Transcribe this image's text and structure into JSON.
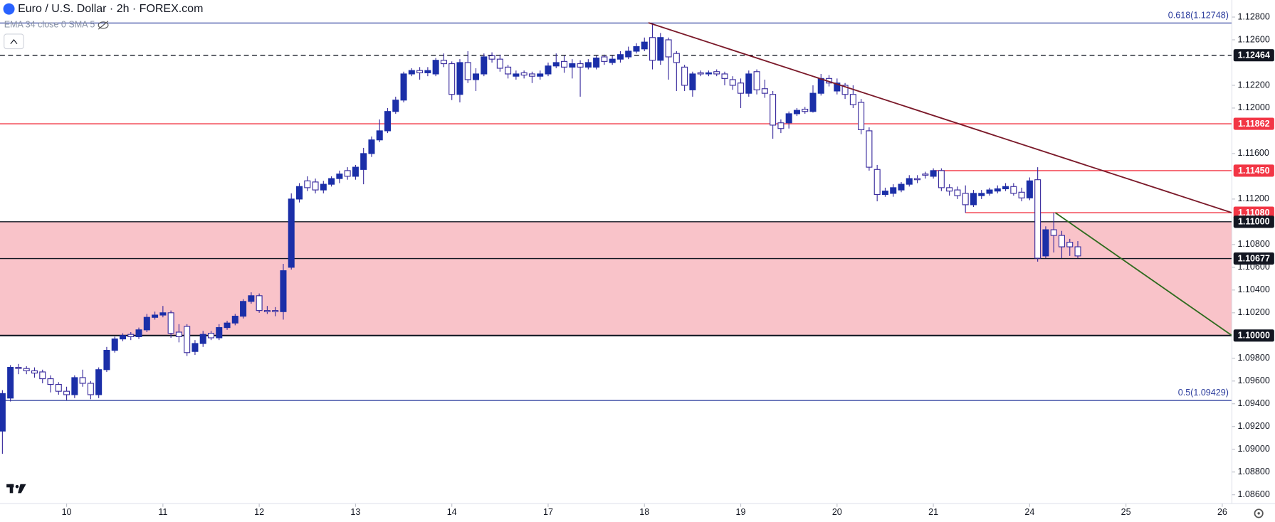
{
  "chart_data": {
    "type": "candlestick",
    "title": "Euro / U.S. Dollar · 2h · FOREX.com",
    "indicator": "EMA 34 close 0 SMA 5",
    "up_color": "#1b2fa8",
    "down_color": "#ffffff",
    "border_color": "#3b2d9e",
    "xlim": [
      -0.3,
      153.2
    ],
    "ylim": [
      1.08522,
      1.1295
    ],
    "xticks": [
      {
        "value": 8,
        "label": "10"
      },
      {
        "value": 20,
        "label": "11"
      },
      {
        "value": 32,
        "label": "12"
      },
      {
        "value": 44,
        "label": "13"
      },
      {
        "value": 56,
        "label": "14"
      },
      {
        "value": 68,
        "label": "17"
      },
      {
        "value": 80,
        "label": "18"
      },
      {
        "value": 92,
        "label": "19"
      },
      {
        "value": 104,
        "label": "20"
      },
      {
        "value": 116,
        "label": "21"
      },
      {
        "value": 128,
        "label": "24"
      },
      {
        "value": 140,
        "label": "25"
      },
      {
        "value": 152,
        "label": "26"
      }
    ],
    "yticks": [
      {
        "value": 1.128,
        "label": "1.12800"
      },
      {
        "value": 1.126,
        "label": "1.12600"
      },
      {
        "value": 1.122,
        "label": "1.12200"
      },
      {
        "value": 1.12,
        "label": "1.12000"
      },
      {
        "value": 1.116,
        "label": "1.11600"
      },
      {
        "value": 1.112,
        "label": "1.11200"
      },
      {
        "value": 1.108,
        "label": "1.10800"
      },
      {
        "value": 1.106,
        "label": "1.10600"
      },
      {
        "value": 1.104,
        "label": "1.10400"
      },
      {
        "value": 1.102,
        "label": "1.10200"
      },
      {
        "value": 1.098,
        "label": "1.09800"
      },
      {
        "value": 1.096,
        "label": "1.09600"
      },
      {
        "value": 1.094,
        "label": "1.09400"
      },
      {
        "value": 1.092,
        "label": "1.09200"
      },
      {
        "value": 1.09,
        "label": "1.09000"
      },
      {
        "value": 1.088,
        "label": "1.08800"
      },
      {
        "value": 1.086,
        "label": "1.08600"
      }
    ],
    "zone": {
      "ylim": [
        1.1,
        1.11
      ],
      "color": "#f9c3c9"
    },
    "fib_levels": [
      {
        "value": 1.12748,
        "label": "0.618(1.12748)",
        "color": "#2a3b9c"
      },
      {
        "value": 1.09429,
        "label": "0.5(1.09429)",
        "color": "#2a3b9c"
      }
    ],
    "levels": [
      {
        "value": 1.12464,
        "label": "1.12464",
        "color": "#131722",
        "dashed": true,
        "x_start": -0.3
      },
      {
        "value": 1.11862,
        "label": "1.11862",
        "color": "#f23645",
        "x_start": -0.3
      },
      {
        "value": 1.1145,
        "label": "1.11450",
        "color": "#f23645",
        "x_start": 116
      },
      {
        "value": 1.1108,
        "label": "1.11080",
        "color": "#f23645",
        "x_start": 120
      },
      {
        "value": 1.11,
        "label": "1.11000",
        "color": "#131722",
        "x_start": -0.3
      },
      {
        "value": 1.10677,
        "label": "1.10677",
        "color": "#131722",
        "x_start": -0.3
      },
      {
        "value": 1.1,
        "label": "1.10000",
        "color": "#131722",
        "x_start": -0.3
      }
    ],
    "trendlines": [
      {
        "x": [
          80.5,
          153.2
        ],
        "y": [
          1.1275,
          1.1108
        ],
        "color": "#7b1a2a"
      },
      {
        "x": [
          131.2,
          153.2
        ],
        "y": [
          1.1108,
          1.1
        ],
        " color": "#2e6b1e",
        "color": "#2e6b1e"
      }
    ],
    "candles": [
      [
        1.0916,
        1.0952,
        1.0896,
        1.0949
      ],
      [
        1.0945,
        1.0974,
        1.0942,
        1.0972
      ],
      [
        1.0972,
        1.0975,
        1.0966,
        1.0971
      ],
      [
        1.0971,
        1.0973,
        1.0966,
        1.0969
      ],
      [
        1.0969,
        1.0972,
        1.0963,
        1.0967
      ],
      [
        1.0968,
        1.097,
        1.0958,
        1.0962
      ],
      [
        1.0962,
        1.0965,
        1.095,
        1.0957
      ],
      [
        1.0957,
        1.0959,
        1.0948,
        1.0951
      ],
      [
        1.0951,
        1.0955,
        1.0943,
        1.0948
      ],
      [
        1.0948,
        1.0965,
        1.0945,
        1.0963
      ],
      [
        1.0963,
        1.097,
        1.0955,
        1.0958
      ],
      [
        1.0958,
        1.096,
        1.0944,
        1.0948
      ],
      [
        1.0948,
        1.0972,
        1.0945,
        1.097
      ],
      [
        1.097,
        1.099,
        1.0968,
        1.0987
      ],
      [
        1.0987,
        1.0999,
        1.0985,
        1.0997
      ],
      [
        1.0997,
        1.1002,
        1.0995,
        1.1
      ],
      [
        1.1001,
        1.1003,
        1.0996,
        1.0999
      ],
      [
        1.0999,
        1.1007,
        1.0997,
        1.1005
      ],
      [
        1.1005,
        1.1019,
        1.1003,
        1.1016
      ],
      [
        1.1016,
        1.1021,
        1.1014,
        1.1018
      ],
      [
        1.1018,
        1.1026,
        1.1016,
        1.102
      ],
      [
        1.102,
        1.1022,
        1.0998,
        1.1002
      ],
      [
        1.1003,
        1.101,
        1.0994,
        1.0999
      ],
      [
        1.1008,
        1.101,
        1.0982,
        1.0985
      ],
      [
        1.0986,
        1.0996,
        1.0983,
        1.0993
      ],
      [
        1.0993,
        1.1004,
        1.099,
        1.1001
      ],
      [
        1.1002,
        1.1004,
        1.0996,
        1.0998
      ],
      [
        1.0998,
        1.101,
        1.0996,
        1.1007
      ],
      [
        1.1007,
        1.1013,
        1.1005,
        1.1011
      ],
      [
        1.1011,
        1.1019,
        1.1009,
        1.1017
      ],
      [
        1.1017,
        1.1032,
        1.1015,
        1.103
      ],
      [
        1.103,
        1.1038,
        1.1028,
        1.1035
      ],
      [
        1.1035,
        1.1037,
        1.102,
        1.1022
      ],
      [
        1.1022,
        1.1026,
        1.1019,
        1.1021
      ],
      [
        1.1022,
        1.1025,
        1.1017,
        1.1021
      ],
      [
        1.1021,
        1.1063,
        1.1014,
        1.1057
      ],
      [
        1.106,
        1.1125,
        1.1058,
        1.112
      ],
      [
        1.112,
        1.1134,
        1.1117,
        1.1131
      ],
      [
        1.1136,
        1.114,
        1.1127,
        1.113
      ],
      [
        1.1135,
        1.1138,
        1.1125,
        1.1128
      ],
      [
        1.1128,
        1.1136,
        1.1125,
        1.1133
      ],
      [
        1.1133,
        1.114,
        1.1131,
        1.1138
      ],
      [
        1.1138,
        1.1145,
        1.1134,
        1.1142
      ],
      [
        1.1145,
        1.1148,
        1.1137,
        1.114
      ],
      [
        1.114,
        1.115,
        1.1137,
        1.1148
      ],
      [
        1.1146,
        1.1165,
        1.1133,
        1.116
      ],
      [
        1.116,
        1.1175,
        1.1157,
        1.1172
      ],
      [
        1.1172,
        1.119,
        1.117,
        1.118
      ],
      [
        1.118,
        1.12,
        1.1178,
        1.1197
      ],
      [
        1.1197,
        1.121,
        1.1195,
        1.1207
      ],
      [
        1.1207,
        1.1232,
        1.1205,
        1.123
      ],
      [
        1.123,
        1.1235,
        1.1228,
        1.1233
      ],
      [
        1.1233,
        1.1236,
        1.1225,
        1.1231
      ],
      [
        1.1231,
        1.1236,
        1.1228,
        1.1233
      ],
      [
        1.123,
        1.1244,
        1.1228,
        1.1242
      ],
      [
        1.1242,
        1.1248,
        1.1236,
        1.1239
      ],
      [
        1.1239,
        1.1241,
        1.1207,
        1.1212
      ],
      [
        1.1212,
        1.1243,
        1.1205,
        1.124
      ],
      [
        1.124,
        1.125,
        1.1222,
        1.1225
      ],
      [
        1.1225,
        1.1235,
        1.1215,
        1.123
      ],
      [
        1.123,
        1.1248,
        1.1228,
        1.1245
      ],
      [
        1.1246,
        1.1249,
        1.124,
        1.1243
      ],
      [
        1.1243,
        1.1247,
        1.1232,
        1.1235
      ],
      [
        1.1236,
        1.1238,
        1.1226,
        1.123
      ],
      [
        1.1228,
        1.1233,
        1.1225,
        1.123
      ],
      [
        1.1231,
        1.1233,
        1.1226,
        1.1229
      ],
      [
        1.123,
        1.1232,
        1.1222,
        1.1228
      ],
      [
        1.1228,
        1.1233,
        1.1225,
        1.123
      ],
      [
        1.123,
        1.124,
        1.1228,
        1.1237
      ],
      [
        1.1237,
        1.1248,
        1.1235,
        1.124
      ],
      [
        1.1241,
        1.1246,
        1.1231,
        1.1236
      ],
      [
        1.1236,
        1.1243,
        1.1226,
        1.1239
      ],
      [
        1.1239,
        1.1242,
        1.121,
        1.1236
      ],
      [
        1.1236,
        1.1243,
        1.1234,
        1.124
      ],
      [
        1.1236,
        1.1246,
        1.1234,
        1.1244
      ],
      [
        1.1245,
        1.1247,
        1.1238,
        1.1241
      ],
      [
        1.124,
        1.1246,
        1.1238,
        1.1243
      ],
      [
        1.1243,
        1.125,
        1.124,
        1.1247
      ],
      [
        1.1245,
        1.1254,
        1.1243,
        1.125
      ],
      [
        1.125,
        1.1257,
        1.1248,
        1.1254
      ],
      [
        1.1252,
        1.1262,
        1.125,
        1.1258
      ],
      [
        1.1262,
        1.1275,
        1.1234,
        1.1242
      ],
      [
        1.1242,
        1.1266,
        1.1238,
        1.1262
      ],
      [
        1.126,
        1.1262,
        1.1225,
        1.1245
      ],
      [
        1.1248,
        1.125,
        1.1215,
        1.124
      ],
      [
        1.1236,
        1.1238,
        1.1215,
        1.122
      ],
      [
        1.1216,
        1.1232,
        1.121,
        1.123
      ],
      [
        1.1231,
        1.1233,
        1.1228,
        1.123
      ],
      [
        1.123,
        1.1233,
        1.1228,
        1.1231
      ],
      [
        1.1232,
        1.1234,
        1.1228,
        1.123
      ],
      [
        1.123,
        1.1232,
        1.122,
        1.1226
      ],
      [
        1.1225,
        1.1228,
        1.1216,
        1.122
      ],
      [
        1.1222,
        1.1226,
        1.12,
        1.1213
      ],
      [
        1.1213,
        1.1233,
        1.121,
        1.123
      ],
      [
        1.1232,
        1.1234,
        1.1212,
        1.1216
      ],
      [
        1.1217,
        1.1225,
        1.1209,
        1.1213
      ],
      [
        1.1212,
        1.1215,
        1.1173,
        1.1185
      ],
      [
        1.1187,
        1.119,
        1.1178,
        1.1182
      ],
      [
        1.1187,
        1.1197,
        1.1182,
        1.1195
      ],
      [
        1.1195,
        1.12,
        1.1193,
        1.1198
      ],
      [
        1.1199,
        1.1201,
        1.1195,
        1.1197
      ],
      [
        1.1197,
        1.122,
        1.1196,
        1.1213
      ],
      [
        1.1213,
        1.123,
        1.1211,
        1.1226
      ],
      [
        1.1226,
        1.1229,
        1.1219,
        1.1222
      ],
      [
        1.1215,
        1.1226,
        1.1212,
        1.1222
      ],
      [
        1.122,
        1.1222,
        1.1208,
        1.1212
      ],
      [
        1.1212,
        1.122,
        1.12,
        1.1203
      ],
      [
        1.1205,
        1.1208,
        1.1177,
        1.1181
      ],
      [
        1.118,
        1.1183,
        1.1145,
        1.1148
      ],
      [
        1.1146,
        1.115,
        1.1118,
        1.1124
      ],
      [
        1.1124,
        1.113,
        1.1122,
        1.1127
      ],
      [
        1.1125,
        1.1133,
        1.1122,
        1.113
      ],
      [
        1.1128,
        1.1135,
        1.1126,
        1.1133
      ],
      [
        1.1133,
        1.1141,
        1.1131,
        1.1138
      ],
      [
        1.1138,
        1.1141,
        1.1134,
        1.1137
      ],
      [
        1.1142,
        1.1144,
        1.1138,
        1.1141
      ],
      [
        1.114,
        1.1147,
        1.1138,
        1.1145
      ],
      [
        1.1145,
        1.1147,
        1.1127,
        1.113
      ],
      [
        1.113,
        1.1133,
        1.1123,
        1.1127
      ],
      [
        1.1128,
        1.1131,
        1.112,
        1.1123
      ],
      [
        1.1125,
        1.1132,
        1.1108,
        1.1115
      ],
      [
        1.1115,
        1.1128,
        1.1113,
        1.1125
      ],
      [
        1.1123,
        1.1128,
        1.112,
        1.1125
      ],
      [
        1.1125,
        1.113,
        1.1123,
        1.1128
      ],
      [
        1.1127,
        1.1132,
        1.1125,
        1.1129
      ],
      [
        1.1129,
        1.1134,
        1.1127,
        1.1131
      ],
      [
        1.1131,
        1.1134,
        1.1123,
        1.1125
      ],
      [
        1.1126,
        1.113,
        1.1118,
        1.1121
      ],
      [
        1.1121,
        1.1139,
        1.1119,
        1.1136
      ],
      [
        1.1137,
        1.1148,
        1.1065,
        1.1068
      ],
      [
        1.107,
        1.1096,
        1.1068,
        1.1093
      ],
      [
        1.1093,
        1.1108,
        1.1073,
        1.1088
      ],
      [
        1.1088,
        1.1092,
        1.1068,
        1.1078
      ],
      [
        1.1082,
        1.1085,
        1.107,
        1.1078
      ],
      [
        1.1078,
        1.1083,
        1.1068,
        1.107
      ]
    ]
  }
}
